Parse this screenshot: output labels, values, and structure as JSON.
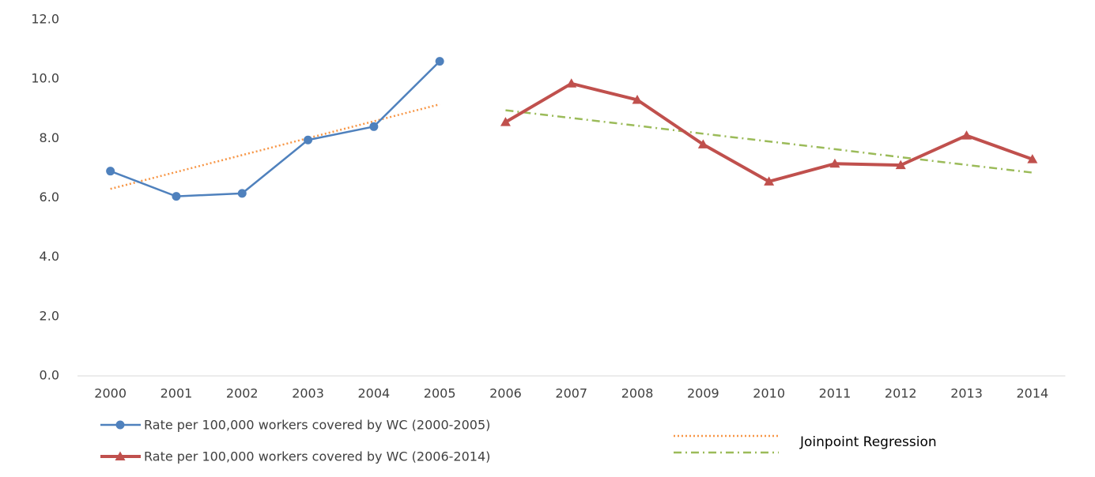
{
  "chart_data": {
    "type": "line",
    "categories": [
      "2000",
      "2001",
      "2002",
      "2003",
      "2004",
      "2005",
      "2006",
      "2007",
      "2008",
      "2009",
      "2010",
      "2011",
      "2012",
      "2013",
      "2014"
    ],
    "series": [
      {
        "name": "Rate per 100,000 workers covered by WC (2000-2005)",
        "color": "#4f81bd",
        "marker": "circle",
        "width": 2.5,
        "values": [
          6.9,
          6.05,
          6.15,
          7.95,
          8.4,
          10.6,
          null,
          null,
          null,
          null,
          null,
          null,
          null,
          null,
          null
        ]
      },
      {
        "name": "Rate per 100,000 workers covered by WC (2006-2014)",
        "color": "#c0504d",
        "marker": "triangle",
        "width": 4,
        "values": [
          null,
          null,
          null,
          null,
          null,
          null,
          8.55,
          9.85,
          9.3,
          7.8,
          6.55,
          7.15,
          7.1,
          8.1,
          7.3
        ]
      }
    ],
    "regression": {
      "label": "Joinpoint Regression",
      "series": [
        {
          "color": "#f79646",
          "style": "dotted",
          "values": [
            6.3,
            6.87,
            7.44,
            8.01,
            8.58,
            9.15,
            null,
            null,
            null,
            null,
            null,
            null,
            null,
            null,
            null
          ]
        },
        {
          "color": "#9bbb59",
          "style": "dashdot",
          "values": [
            null,
            null,
            null,
            null,
            null,
            null,
            8.95,
            8.69,
            8.43,
            8.16,
            7.9,
            7.64,
            7.37,
            7.11,
            6.85
          ]
        }
      ]
    },
    "ylim": [
      0,
      12
    ],
    "yticks": [
      {
        "value": 0,
        "label": "0.0"
      },
      {
        "value": 2,
        "label": "2.0"
      },
      {
        "value": 4,
        "label": "4.0"
      },
      {
        "value": 6,
        "label": "6.0"
      },
      {
        "value": 8,
        "label": "8.0"
      },
      {
        "value": 10,
        "label": "10.0"
      },
      {
        "value": 12,
        "label": "12.0"
      }
    ],
    "grid": false
  }
}
